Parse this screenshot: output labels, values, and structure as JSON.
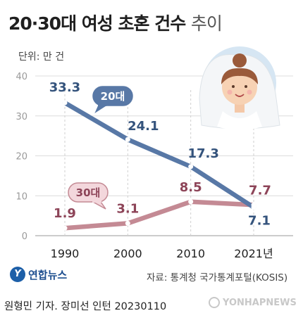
{
  "title_main": "20·30대 여성 초혼 건수",
  "title_suffix": "추이",
  "unit_label": "단위: 만 건",
  "source": "자료: 통계청 국가통계포털(KOSIS)",
  "logo_mark": "Y",
  "logo_name": "연합뉴스",
  "credit": "원형민 기자. 장미선 인턴  20230110",
  "watermark": "YONHAPNEWS",
  "colors": {
    "series_20s": "#5878a6",
    "series_30s": "#c48a94",
    "label_20s_text": "#34537c",
    "label_30s_text": "#8d4458",
    "bubble_20s_fill": "#5878a6",
    "bubble_30s_fill": "#f3d7dc",
    "bubble_30s_stroke": "#c48a94"
  },
  "chart_data": {
    "type": "line",
    "title": "20·30대 여성 초혼 건수 추이",
    "ylabel": "단위: 만 건",
    "categories": [
      "1990",
      "2000",
      "2010",
      "2021년"
    ],
    "ylim": [
      0,
      40
    ],
    "yticks": [
      "0",
      "10",
      "20",
      "30",
      "40"
    ],
    "grid": true,
    "series": [
      {
        "name": "20대",
        "values": [
          33.3,
          24.1,
          17.3,
          7.1
        ],
        "labels": [
          "33.3",
          "24.1",
          "17.3",
          "7.1"
        ]
      },
      {
        "name": "30대",
        "values": [
          1.9,
          3.1,
          8.5,
          7.7
        ],
        "labels": [
          "1.9",
          "3.1",
          "8.5",
          "7.7"
        ]
      }
    ]
  }
}
